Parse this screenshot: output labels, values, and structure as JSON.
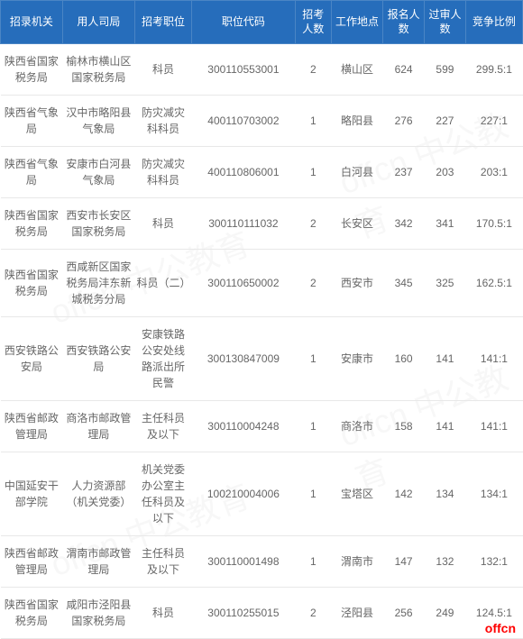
{
  "header": {
    "columns": [
      "招录机关",
      "用人司局",
      "招考职位",
      "职位代码",
      "招考人数",
      "工作地点",
      "报名人数",
      "过审人数",
      "竞争比例"
    ]
  },
  "rows": [
    {
      "org": "陕西省国家税务局",
      "dept": "榆林市横山区国家税务局",
      "position": "科员",
      "code": "300110553001",
      "recruit": "2",
      "location": "横山区",
      "applicants": "624",
      "passed": "599",
      "ratio": "299.5:1"
    },
    {
      "org": "陕西省气象局",
      "dept": "汉中市略阳县气象局",
      "position": "防灾减灾科科员",
      "code": "400110703002",
      "recruit": "1",
      "location": "略阳县",
      "applicants": "276",
      "passed": "227",
      "ratio": "227:1"
    },
    {
      "org": "陕西省气象局",
      "dept": "安康市白河县气象局",
      "position": "防灾减灾科科员",
      "code": "400110806001",
      "recruit": "1",
      "location": "白河县",
      "applicants": "237",
      "passed": "203",
      "ratio": "203:1"
    },
    {
      "org": "陕西省国家税务局",
      "dept": "西安市长安区国家税务局",
      "position": "科员",
      "code": "300110111032",
      "recruit": "2",
      "location": "长安区",
      "applicants": "342",
      "passed": "341",
      "ratio": "170.5:1"
    },
    {
      "org": "陕西省国家税务局",
      "dept": "西咸新区国家税务局沣东新城税务分局",
      "position": "科员（二）",
      "code": "300110650002",
      "recruit": "2",
      "location": "西安市",
      "applicants": "345",
      "passed": "325",
      "ratio": "162.5:1"
    },
    {
      "org": "西安铁路公安局",
      "dept": "西安铁路公安局",
      "position": "安康铁路公安处线路派出所民警",
      "code": "300130847009",
      "recruit": "1",
      "location": "安康市",
      "applicants": "160",
      "passed": "141",
      "ratio": "141:1"
    },
    {
      "org": "陕西省邮政管理局",
      "dept": "商洛市邮政管理局",
      "position": "主任科员及以下",
      "code": "300110004248",
      "recruit": "1",
      "location": "商洛市",
      "applicants": "158",
      "passed": "141",
      "ratio": "141:1"
    },
    {
      "org": "中国延安干部学院",
      "dept": "人力资源部（机关党委）",
      "position": "机关党委办公室主任科员及以下",
      "code": "100210004006",
      "recruit": "1",
      "location": "宝塔区",
      "applicants": "142",
      "passed": "134",
      "ratio": "134:1"
    },
    {
      "org": "陕西省邮政管理局",
      "dept": "渭南市邮政管理局",
      "position": "主任科员及以下",
      "code": "300110001498",
      "recruit": "1",
      "location": "渭南市",
      "applicants": "147",
      "passed": "132",
      "ratio": "132:1"
    },
    {
      "org": "陕西省国家税务局",
      "dept": "咸阳市泾阳县国家税务局",
      "position": "科员",
      "code": "300110255015",
      "recruit": "2",
      "location": "泾阳县",
      "applicants": "256",
      "passed": "249",
      "ratio": "124.5:1"
    }
  ],
  "watermark": "offcn 中公教育",
  "brand": "offcn",
  "styling": {
    "header_bg": "#266dbb",
    "header_text": "#ffffff",
    "body_text": "#666666",
    "border_color": "#e8e8e8",
    "brand_color": "#ff0000",
    "font_size_header": 12,
    "font_size_body": 12
  }
}
